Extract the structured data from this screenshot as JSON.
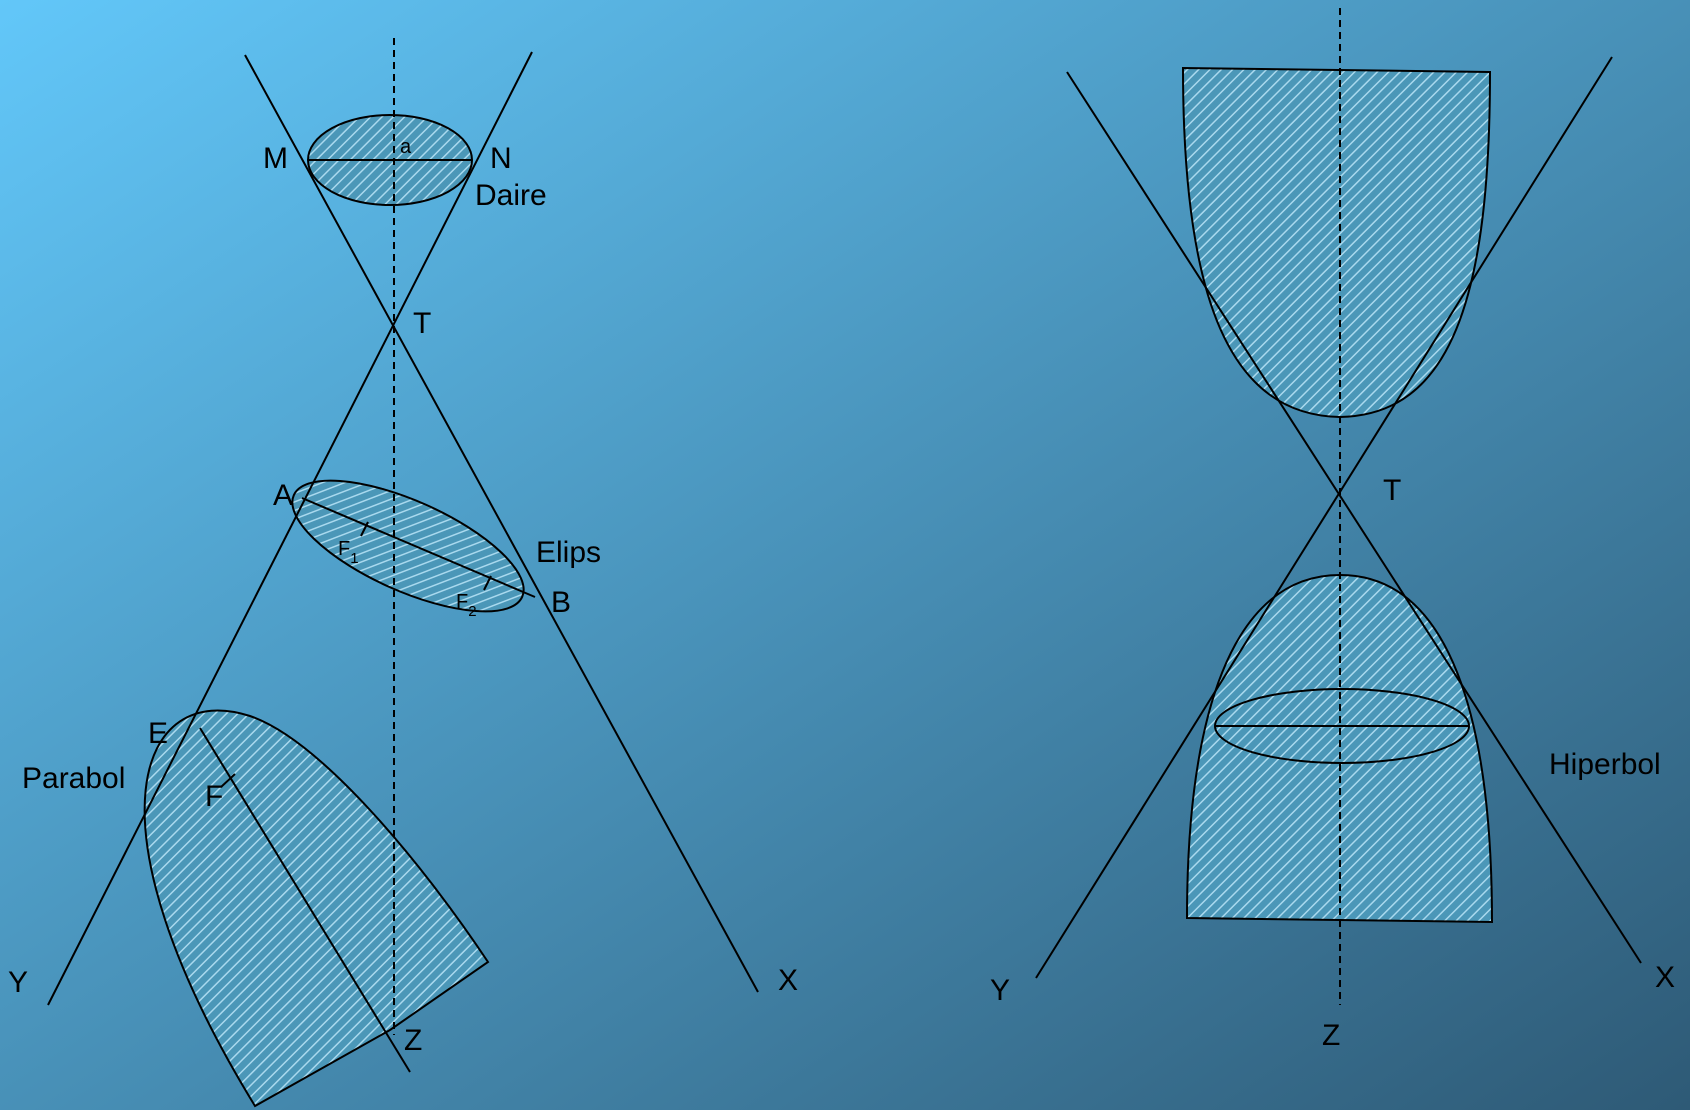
{
  "colors": {
    "background_start": "#62c7f9",
    "background_end": "#2e5a76",
    "hatch_fill": "#4b97b8",
    "hatch_line": "#a9d9ee",
    "line": "#000000"
  },
  "left_figure": {
    "labels": {
      "M": "M",
      "N": "N",
      "a": "a",
      "daire": "Daire",
      "T": "T",
      "A": "A",
      "B": "B",
      "elips": "Elips",
      "F1": "F",
      "F1_sub": "1",
      "F2": "F",
      "F2_sub": "2",
      "E": "E",
      "parabol": "Parabol",
      "F": "F",
      "Y": "Y",
      "X": "X",
      "Z": "Z"
    }
  },
  "right_figure": {
    "labels": {
      "T": "T",
      "hiperbol": "Hiperbol",
      "Y": "Y",
      "X": "X",
      "Z": "Z"
    }
  }
}
